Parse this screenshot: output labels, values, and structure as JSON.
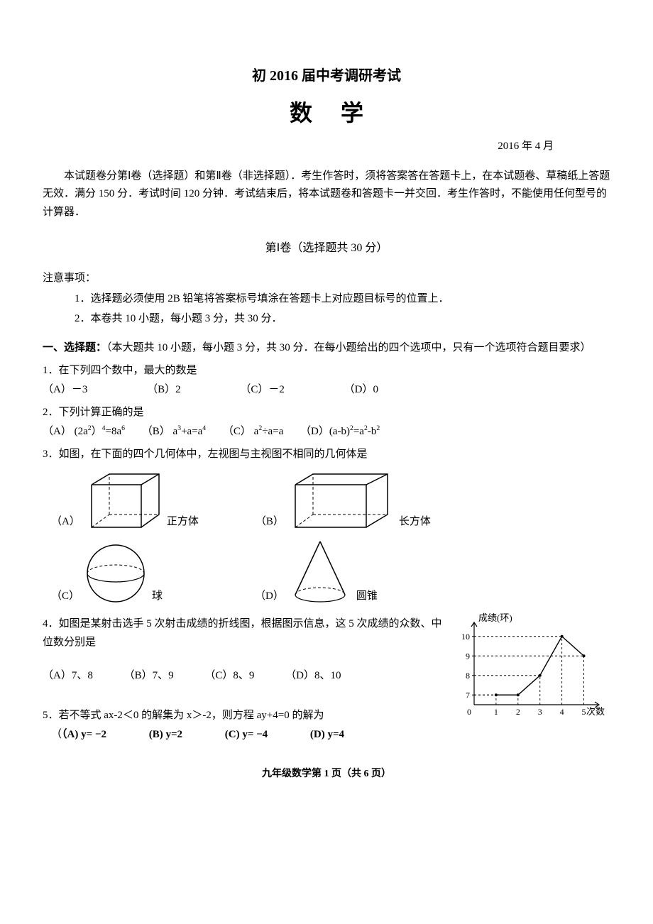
{
  "header": {
    "title_main": "初 2016 届中考调研考试",
    "title_sub": "数学",
    "date": "2016 年 4 月",
    "intro": "本试题卷分第Ⅰ卷（选择题）和第Ⅱ卷（非选择题）．考生作答时，须将答案答在答题卡上，在本试题卷、草稿纸上答题无效．满分 150 分．考试时间 120 分钟．考试结束后，将本试题卷和答题卡一并交回．考生作答时，不能使用任何型号的计算器．",
    "part_title": "第Ⅰ卷（选择题共 30 分）",
    "notes_head": "注意事项：",
    "note1": "1．选择题必须使用 2B 铅笔将答案标号填涂在答题卡上对应题目标号的位置上．",
    "note2": "2．本卷共 10 小题，每小题 3 分，共 30 分．",
    "section_head_bold": "一、选择题：",
    "section_head_rest": "（本大题共 10 小题，每小题 3 分，共 30 分．在每小题给出的四个选项中，只有一个选项符合题目要求）"
  },
  "q1": {
    "text": "1．在下列四个数中，最大的数是",
    "optA": "（A）－3",
    "optB": "（B）2",
    "optC": "（C）－2",
    "optD": "（D）0"
  },
  "q2": {
    "text": "2．下列计算正确的是",
    "optA_pre": "（A） (2a",
    "optA_post": "=8a",
    "optB_pre": "（B） a",
    "optB_mid": "+a=a",
    "optC_pre": "（C） a",
    "optC_mid": "÷a=a",
    "optD_pre": "（D）(a-b)",
    "optD_mid": "=a",
    "optD_end": "-b"
  },
  "q3": {
    "text": "3．如图，在下面的四个几何体中，左视图与主视图不相同的几何体是",
    "labels": {
      "A": "（A）",
      "B": "（B）",
      "C": "（C）",
      "D": "（D）"
    },
    "names": {
      "cube": "正方体",
      "cuboid": "长方体",
      "sphere": "球",
      "cone": "圆锥"
    },
    "style": {
      "stroke": "#000000",
      "dash": "4,3",
      "fill": "#ffffff"
    }
  },
  "q4": {
    "text1": "4．如图是某射击选手 5 次射击成绩的折线图，根据图示信息，这 5 次成绩的众数、中位数分别是",
    "optA": "（A）7、8",
    "optB": "（B）7、9",
    "optC": "（C）8、9",
    "optD": "（D）8、10",
    "chart": {
      "type": "line",
      "y_label": "成绩(环)",
      "x_label": "次数",
      "x_values": [
        1,
        2,
        3,
        4,
        5
      ],
      "y_values": [
        7,
        7,
        8,
        10,
        9
      ],
      "y_ticks": [
        7,
        8,
        9,
        10
      ],
      "y_tick_labels": [
        "7",
        "8",
        "9",
        "10"
      ],
      "x_tick_labels": [
        "1",
        "2",
        "3",
        "4",
        "5"
      ],
      "xlim": [
        0,
        5.5
      ],
      "ylim": [
        6.5,
        10.5
      ],
      "line_color": "#000000",
      "dash_color": "#000000",
      "dash_pattern": "3,3",
      "marker_radius": 2,
      "axis_color": "#000000",
      "background_color": "#ffffff",
      "tick_fontsize": 12,
      "label_fontsize": 13
    }
  },
  "q5": {
    "text": "5．若不等式 ax-2＜0 的解集为 x＞-2，则方程 ay+4=0 的解为",
    "optA": "（A) y= −2",
    "optB": "(B) y=2",
    "optC": "(C) y= −4",
    "optD": "(D) y=4"
  },
  "footer": "九年级数学第  1  页（共 6 页）"
}
